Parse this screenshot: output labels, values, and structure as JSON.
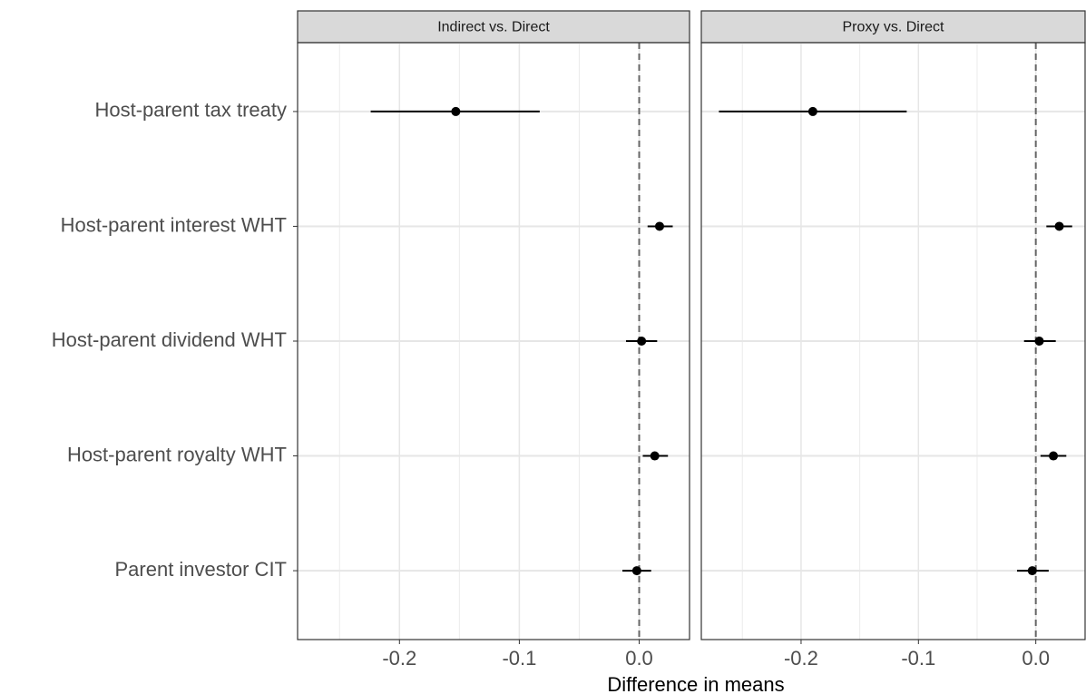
{
  "chart_data": {
    "type": "dotwhisker",
    "x_label": "Difference in means",
    "categories": [
      "Host-parent tax treaty",
      "Host-parent interest WHT",
      "Host-parent dividend WHT",
      "Host-parent royalty WHT",
      "Parent investor CIT"
    ],
    "panels": [
      {
        "title": "Indirect vs. Direct",
        "values": [
          -0.153,
          0.017,
          0.002,
          0.013,
          -0.002
        ],
        "lower": [
          -0.224,
          0.007,
          -0.011,
          0.003,
          -0.014
        ],
        "upper": [
          -0.083,
          0.028,
          0.015,
          0.024,
          0.01
        ]
      },
      {
        "title": "Proxy vs. Direct",
        "values": [
          -0.19,
          0.02,
          0.003,
          0.015,
          -0.003
        ],
        "lower": [
          -0.27,
          0.009,
          -0.01,
          0.004,
          -0.016
        ],
        "upper": [
          -0.11,
          0.031,
          0.017,
          0.026,
          0.011
        ]
      }
    ],
    "xlim": [
      -0.285,
      0.042
    ],
    "xticks": [
      -0.2,
      -0.1,
      {
        "value": 0,
        "label": "0.0"
      }
    ],
    "minor_xticks": [
      -0.25,
      -0.15,
      -0.05
    ],
    "reference_line": 0,
    "color": "#000000",
    "grid": true
  }
}
